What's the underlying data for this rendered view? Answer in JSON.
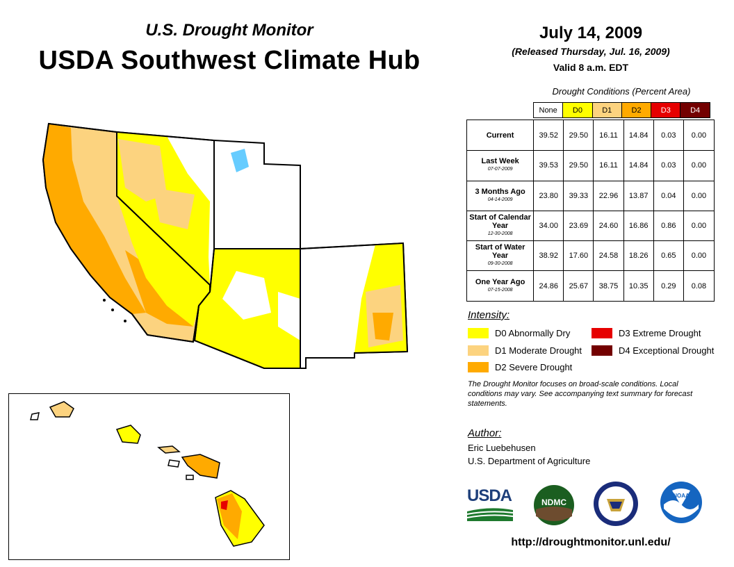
{
  "header": {
    "subtitle": "U.S. Drought Monitor",
    "title": "USDA Southwest Climate Hub",
    "date": "July 14, 2009",
    "released": "(Released Thursday, Jul. 16, 2009)",
    "valid": "Valid 8 a.m. EDT"
  },
  "table": {
    "title": "Drought Conditions (Percent Area)",
    "columns": [
      "None",
      "D0",
      "D1",
      "D2",
      "D3",
      "D4"
    ],
    "column_colors": [
      "#ffffff",
      "#ffff00",
      "#fcd37f",
      "#ffaa00",
      "#e60000",
      "#730000"
    ],
    "column_text_colors": [
      "#000000",
      "#000000",
      "#000000",
      "#000000",
      "#ffffff",
      "#ffffff"
    ],
    "rows": [
      {
        "label": "Current",
        "date": "",
        "values": [
          "39.52",
          "29.50",
          "16.11",
          "14.84",
          "0.03",
          "0.00"
        ]
      },
      {
        "label": "Last Week",
        "date": "07-07-2009",
        "values": [
          "39.53",
          "29.50",
          "16.11",
          "14.84",
          "0.03",
          "0.00"
        ]
      },
      {
        "label": "3 Months Ago",
        "date": "04-14-2009",
        "values": [
          "23.80",
          "39.33",
          "22.96",
          "13.87",
          "0.04",
          "0.00"
        ]
      },
      {
        "label": "Start of Calendar Year",
        "date": "12-30-2008",
        "values": [
          "34.00",
          "23.69",
          "24.60",
          "16.86",
          "0.86",
          "0.00"
        ]
      },
      {
        "label": "Start of Water Year",
        "date": "09-30-2008",
        "values": [
          "38.92",
          "17.60",
          "24.58",
          "18.26",
          "0.65",
          "0.00"
        ]
      },
      {
        "label": "One Year Ago",
        "date": "07-15-2008",
        "values": [
          "24.86",
          "25.67",
          "38.75",
          "10.35",
          "0.29",
          "0.08"
        ]
      }
    ]
  },
  "legend": {
    "title": "Intensity:",
    "items": [
      {
        "label": "D0 Abnormally Dry",
        "color": "#ffff00"
      },
      {
        "label": "D1 Moderate Drought",
        "color": "#fcd37f"
      },
      {
        "label": "D2 Severe Drought",
        "color": "#ffaa00"
      },
      {
        "label": "D3 Extreme Drought",
        "color": "#e60000"
      },
      {
        "label": "D4 Exceptional Drought",
        "color": "#730000"
      }
    ]
  },
  "note": "The Drought Monitor focuses on broad-scale conditions. Local conditions may vary. See accompanying text summary for forecast statements.",
  "author": {
    "title": "Author:",
    "name": "Eric Luebehusen",
    "org": "U.S. Department of Agriculture"
  },
  "logos": {
    "usda": "USDA",
    "ndmc": "NDMC",
    "noaa": "NOAA"
  },
  "url": "http://droughtmonitor.unl.edu/"
}
